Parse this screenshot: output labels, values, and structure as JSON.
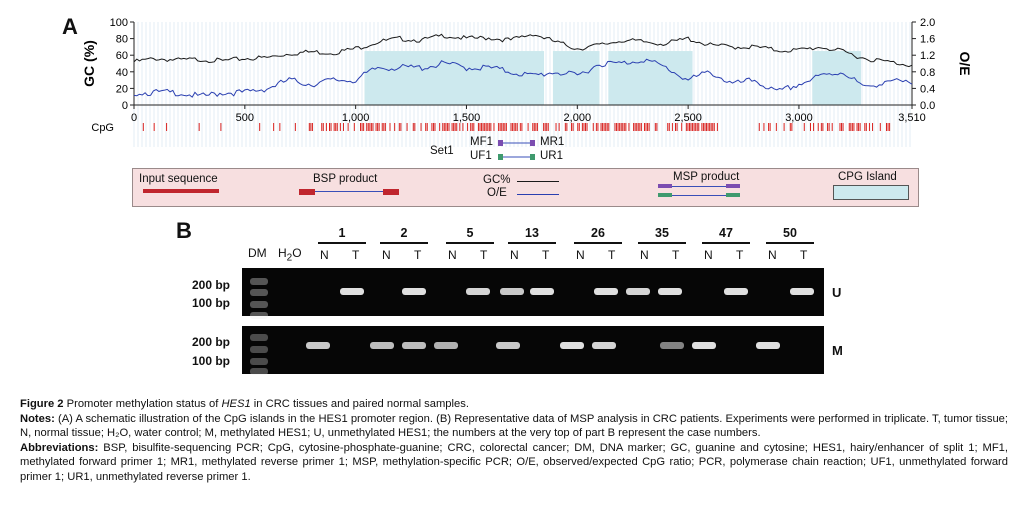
{
  "panelA": {
    "label": "A",
    "y_left_title": "GC (%)",
    "y_right_title": "O/E",
    "y_left_ticks": [
      "100",
      "80",
      "60",
      "40",
      "20",
      "0"
    ],
    "y_right_ticks": [
      "2.0",
      "1.6",
      "1.2",
      "0.8",
      "0.4",
      "0.0"
    ],
    "x_ticks": [
      "0",
      "500",
      "1,000",
      "1,500",
      "2,000",
      "2,500",
      "3,000",
      "3,510"
    ],
    "cpg_label": "CpG",
    "set_label": "Set1",
    "primers": {
      "mf1": "MF1",
      "mr1": "MR1",
      "uf1": "UF1",
      "ur1": "UR1"
    },
    "legend": {
      "input_sequence": "Input sequence",
      "bsp_product": "BSP product",
      "gc_pct": "GC%",
      "oe": "O/E",
      "msp_product": "MSP product",
      "cpg_island": "CPG Island"
    },
    "colors": {
      "island": "#cde9ee",
      "cpg_tick": "#d9221f",
      "gc_line": "#1a1a1a",
      "oe_line": "#2a3fb0",
      "mf": "#7b4db0",
      "uf": "#3f9a6e",
      "input": "#c0262e"
    }
  },
  "chart_data": {
    "type": "line",
    "x_range": [
      0,
      3510
    ],
    "ylim_left": [
      0,
      100
    ],
    "ylim_right": [
      0,
      2.0
    ],
    "cpg_islands": [
      [
        1040,
        1850
      ],
      [
        1890,
        2100
      ],
      [
        2140,
        2520
      ],
      [
        3060,
        3280
      ]
    ],
    "series": [
      {
        "name": "GC%",
        "axis": "left",
        "x": [
          0,
          100,
          200,
          300,
          400,
          500,
          600,
          700,
          800,
          900,
          1000,
          1100,
          1200,
          1300,
          1400,
          1500,
          1600,
          1700,
          1800,
          1900,
          2000,
          2100,
          2200,
          2300,
          2400,
          2500,
          2600,
          2700,
          2800,
          2900,
          3000,
          3100,
          3200,
          3300,
          3400,
          3510
        ],
        "y": [
          52,
          56,
          54,
          55,
          53,
          56,
          57,
          62,
          64,
          63,
          68,
          76,
          80,
          78,
          84,
          80,
          81,
          78,
          86,
          76,
          68,
          72,
          78,
          76,
          74,
          80,
          72,
          70,
          70,
          66,
          66,
          70,
          64,
          56,
          52,
          48
        ]
      },
      {
        "name": "O/E",
        "axis": "right",
        "x": [
          0,
          100,
          200,
          300,
          400,
          500,
          600,
          700,
          800,
          900,
          1000,
          1100,
          1200,
          1300,
          1400,
          1500,
          1600,
          1700,
          1800,
          1900,
          2000,
          2100,
          2200,
          2300,
          2400,
          2500,
          2600,
          2700,
          2800,
          2900,
          3000,
          3100,
          3200,
          3300,
          3400,
          3510
        ],
        "y": [
          0.3,
          0.3,
          0.3,
          0.2,
          0.3,
          0.3,
          0.4,
          0.6,
          0.5,
          0.6,
          0.6,
          0.9,
          0.9,
          0.9,
          1.0,
          0.9,
          0.9,
          0.8,
          0.7,
          0.8,
          0.7,
          1.0,
          1.0,
          1.1,
          0.9,
          0.6,
          0.8,
          0.5,
          0.6,
          0.3,
          0.5,
          0.7,
          0.8,
          0.4,
          0.6,
          0.5
        ]
      }
    ]
  },
  "panelB": {
    "label": "B",
    "dm": "DM",
    "h2o_main": "H",
    "h2o_sub": "2",
    "h2o_end": "O",
    "cases": [
      "1",
      "2",
      "5",
      "13",
      "26",
      "35",
      "47",
      "50"
    ],
    "n": "N",
    "t": "T",
    "bp200": "200 bp",
    "bp100": "100 bp",
    "u": "U",
    "m": "M"
  },
  "caption": {
    "fig_label": "Figure 2",
    "fig_text_1": "Promoter methylation status of ",
    "fig_gene": "HES1",
    "fig_text_2": " in CRC tissues and paired normal samples.",
    "notes_label": "Notes:",
    "notes_text": "(A) A schematic illustration of the CpG islands in the HES1 promoter region. (B) Representative data of MSP analysis in CRC patients. Experiments were performed in triplicate. T, tumor tissue; N, normal tissue; H₂O, water control; M, methylated HES1; U, unmethylated HES1; the numbers at the very top of part B represent the case numbers.",
    "abbr_label": "Abbreviations:",
    "abbr_text": "BSP, bisulfite-sequencing PCR; CpG, cytosine-phosphate-guanine; CRC, colorectal cancer; DM, DNA marker; GC, guanine and cytosine; HES1, hairy/enhancer of split 1; MF1, methylated forward primer 1; MR1, methylated reverse primer 1; MSP, methylation-specific PCR; O/E, observed/expected CpG ratio; PCR, polymerase chain reaction; UF1, unmethylated forward primer 1; UR1, unmethylated reverse primer 1."
  }
}
